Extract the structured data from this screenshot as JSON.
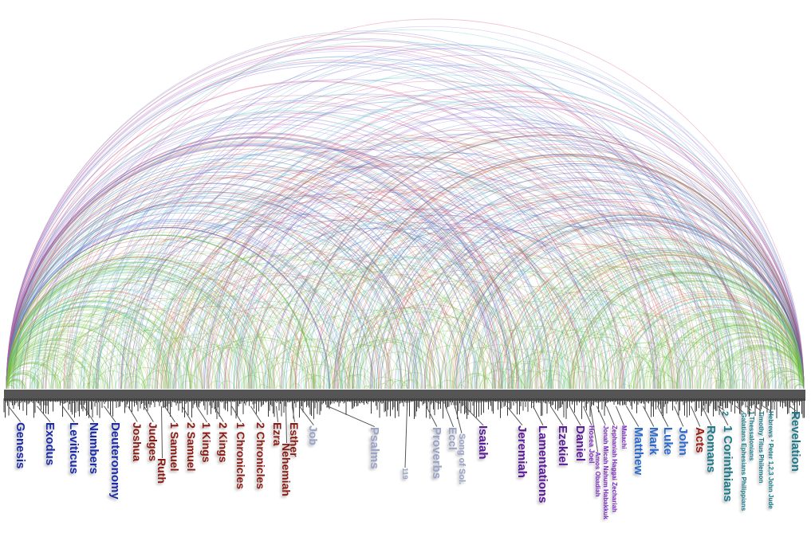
{
  "colors": {
    "law": "#1a2aa8",
    "history": "#8a1a12",
    "poetry": "#9aa3c8",
    "major_prophets": "#5a1a9a",
    "minor_prophets": "#7a2ac0",
    "gospels": "#2a6ad0",
    "acts": "#a01a10",
    "epistles": "#1a7a8a",
    "arc_palette": [
      "#6bbf3a",
      "#8fc85a",
      "#c0603a",
      "#d04a7a",
      "#8a5ad0",
      "#5a7ad0",
      "#5ac0c8",
      "#3a4a9a",
      "#b07ae0"
    ],
    "histogram": "#3a3a3a"
  },
  "books": [
    {
      "label": "Genesis",
      "group": "law",
      "size": "big"
    },
    {
      "label": "Exodus",
      "group": "law",
      "size": "big"
    },
    {
      "label": "Leviticus",
      "group": "law",
      "size": "big"
    },
    {
      "label": "Numbers",
      "group": "law",
      "size": "big"
    },
    {
      "label": "Deuteronomy",
      "group": "law",
      "size": "big"
    },
    {
      "label": "Joshua",
      "group": "history",
      "size": "big"
    },
    {
      "label": "Judges",
      "group": "history",
      "size": "big"
    },
    {
      "label": "Ruth",
      "group": "history",
      "size": "big"
    },
    {
      "label": "1 Samuel",
      "group": "history",
      "size": "big"
    },
    {
      "label": "2 Samuel",
      "group": "history",
      "size": "big"
    },
    {
      "label": "1 Kings",
      "group": "history",
      "size": "big"
    },
    {
      "label": "2 Kings",
      "group": "history",
      "size": "big"
    },
    {
      "label": "1 Chronicles",
      "group": "history",
      "size": "big"
    },
    {
      "label": "2 Chronicles",
      "group": "history",
      "size": "big"
    },
    {
      "label": "Ezra",
      "group": "history",
      "size": "big"
    },
    {
      "label": "Nehemiah",
      "group": "history",
      "size": "big"
    },
    {
      "label": "Esther",
      "group": "history",
      "size": "big"
    },
    {
      "label": "Job",
      "group": "poetry",
      "size": "big"
    },
    {
      "label": "Psalms",
      "group": "poetry",
      "size": "big"
    },
    {
      "label": "119",
      "group": "poetry",
      "size": "small"
    },
    {
      "label": "Proverbs",
      "group": "poetry",
      "size": "big"
    },
    {
      "label": "Eccl",
      "group": "poetry",
      "size": "big"
    },
    {
      "label": "Song of Sol.",
      "group": "poetry",
      "size": "mid"
    },
    {
      "label": "Isaiah",
      "group": "major_prophets",
      "size": "big"
    },
    {
      "label": "Jeremiah",
      "group": "major_prophets",
      "size": "big"
    },
    {
      "label": "Lamentations",
      "group": "major_prophets",
      "size": "big"
    },
    {
      "label": "Ezekiel",
      "group": "major_prophets",
      "size": "big"
    },
    {
      "label": "Daniel",
      "group": "major_prophets",
      "size": "big"
    },
    {
      "label": "Hosea  Joel",
      "group": "minor_prophets",
      "size": "small"
    },
    {
      "label": "Amos  Obadiah",
      "group": "minor_prophets",
      "size": "small"
    },
    {
      "label": "Jonah  Micah  Nahum  Habakkuk",
      "group": "minor_prophets",
      "size": "small"
    },
    {
      "label": "Zephaniah  Haggai  Zechariah",
      "group": "minor_prophets",
      "size": "small"
    },
    {
      "label": "Malachi",
      "group": "minor_prophets",
      "size": "small"
    },
    {
      "label": "Matthew",
      "group": "gospels",
      "size": "big"
    },
    {
      "label": "Mark",
      "group": "gospels",
      "size": "big"
    },
    {
      "label": "Luke",
      "group": "gospels",
      "size": "big"
    },
    {
      "label": "John",
      "group": "gospels",
      "size": "big"
    },
    {
      "label": "Acts",
      "group": "acts",
      "size": "big"
    },
    {
      "label": "Romans",
      "group": "epistles",
      "size": "big"
    },
    {
      "label": "2",
      "group": "epistles",
      "size": "mid"
    },
    {
      "label": "1 Corinthians",
      "group": "epistles",
      "size": "big"
    },
    {
      "label": "Galatians  Ephesians  Philippians",
      "group": "epistles",
      "size": "small"
    },
    {
      "label": "1 Thessalonians",
      "group": "epistles",
      "size": "small"
    },
    {
      "label": "Timothy  Titus  Philemon",
      "group": "epistles",
      "size": "small"
    },
    {
      "label": "Hebrews  ² Peter  1,2,3 John  Jude",
      "group": "epistles",
      "size": "small"
    },
    {
      "label": "Revelation",
      "group": "epistles",
      "size": "big"
    }
  ]
}
